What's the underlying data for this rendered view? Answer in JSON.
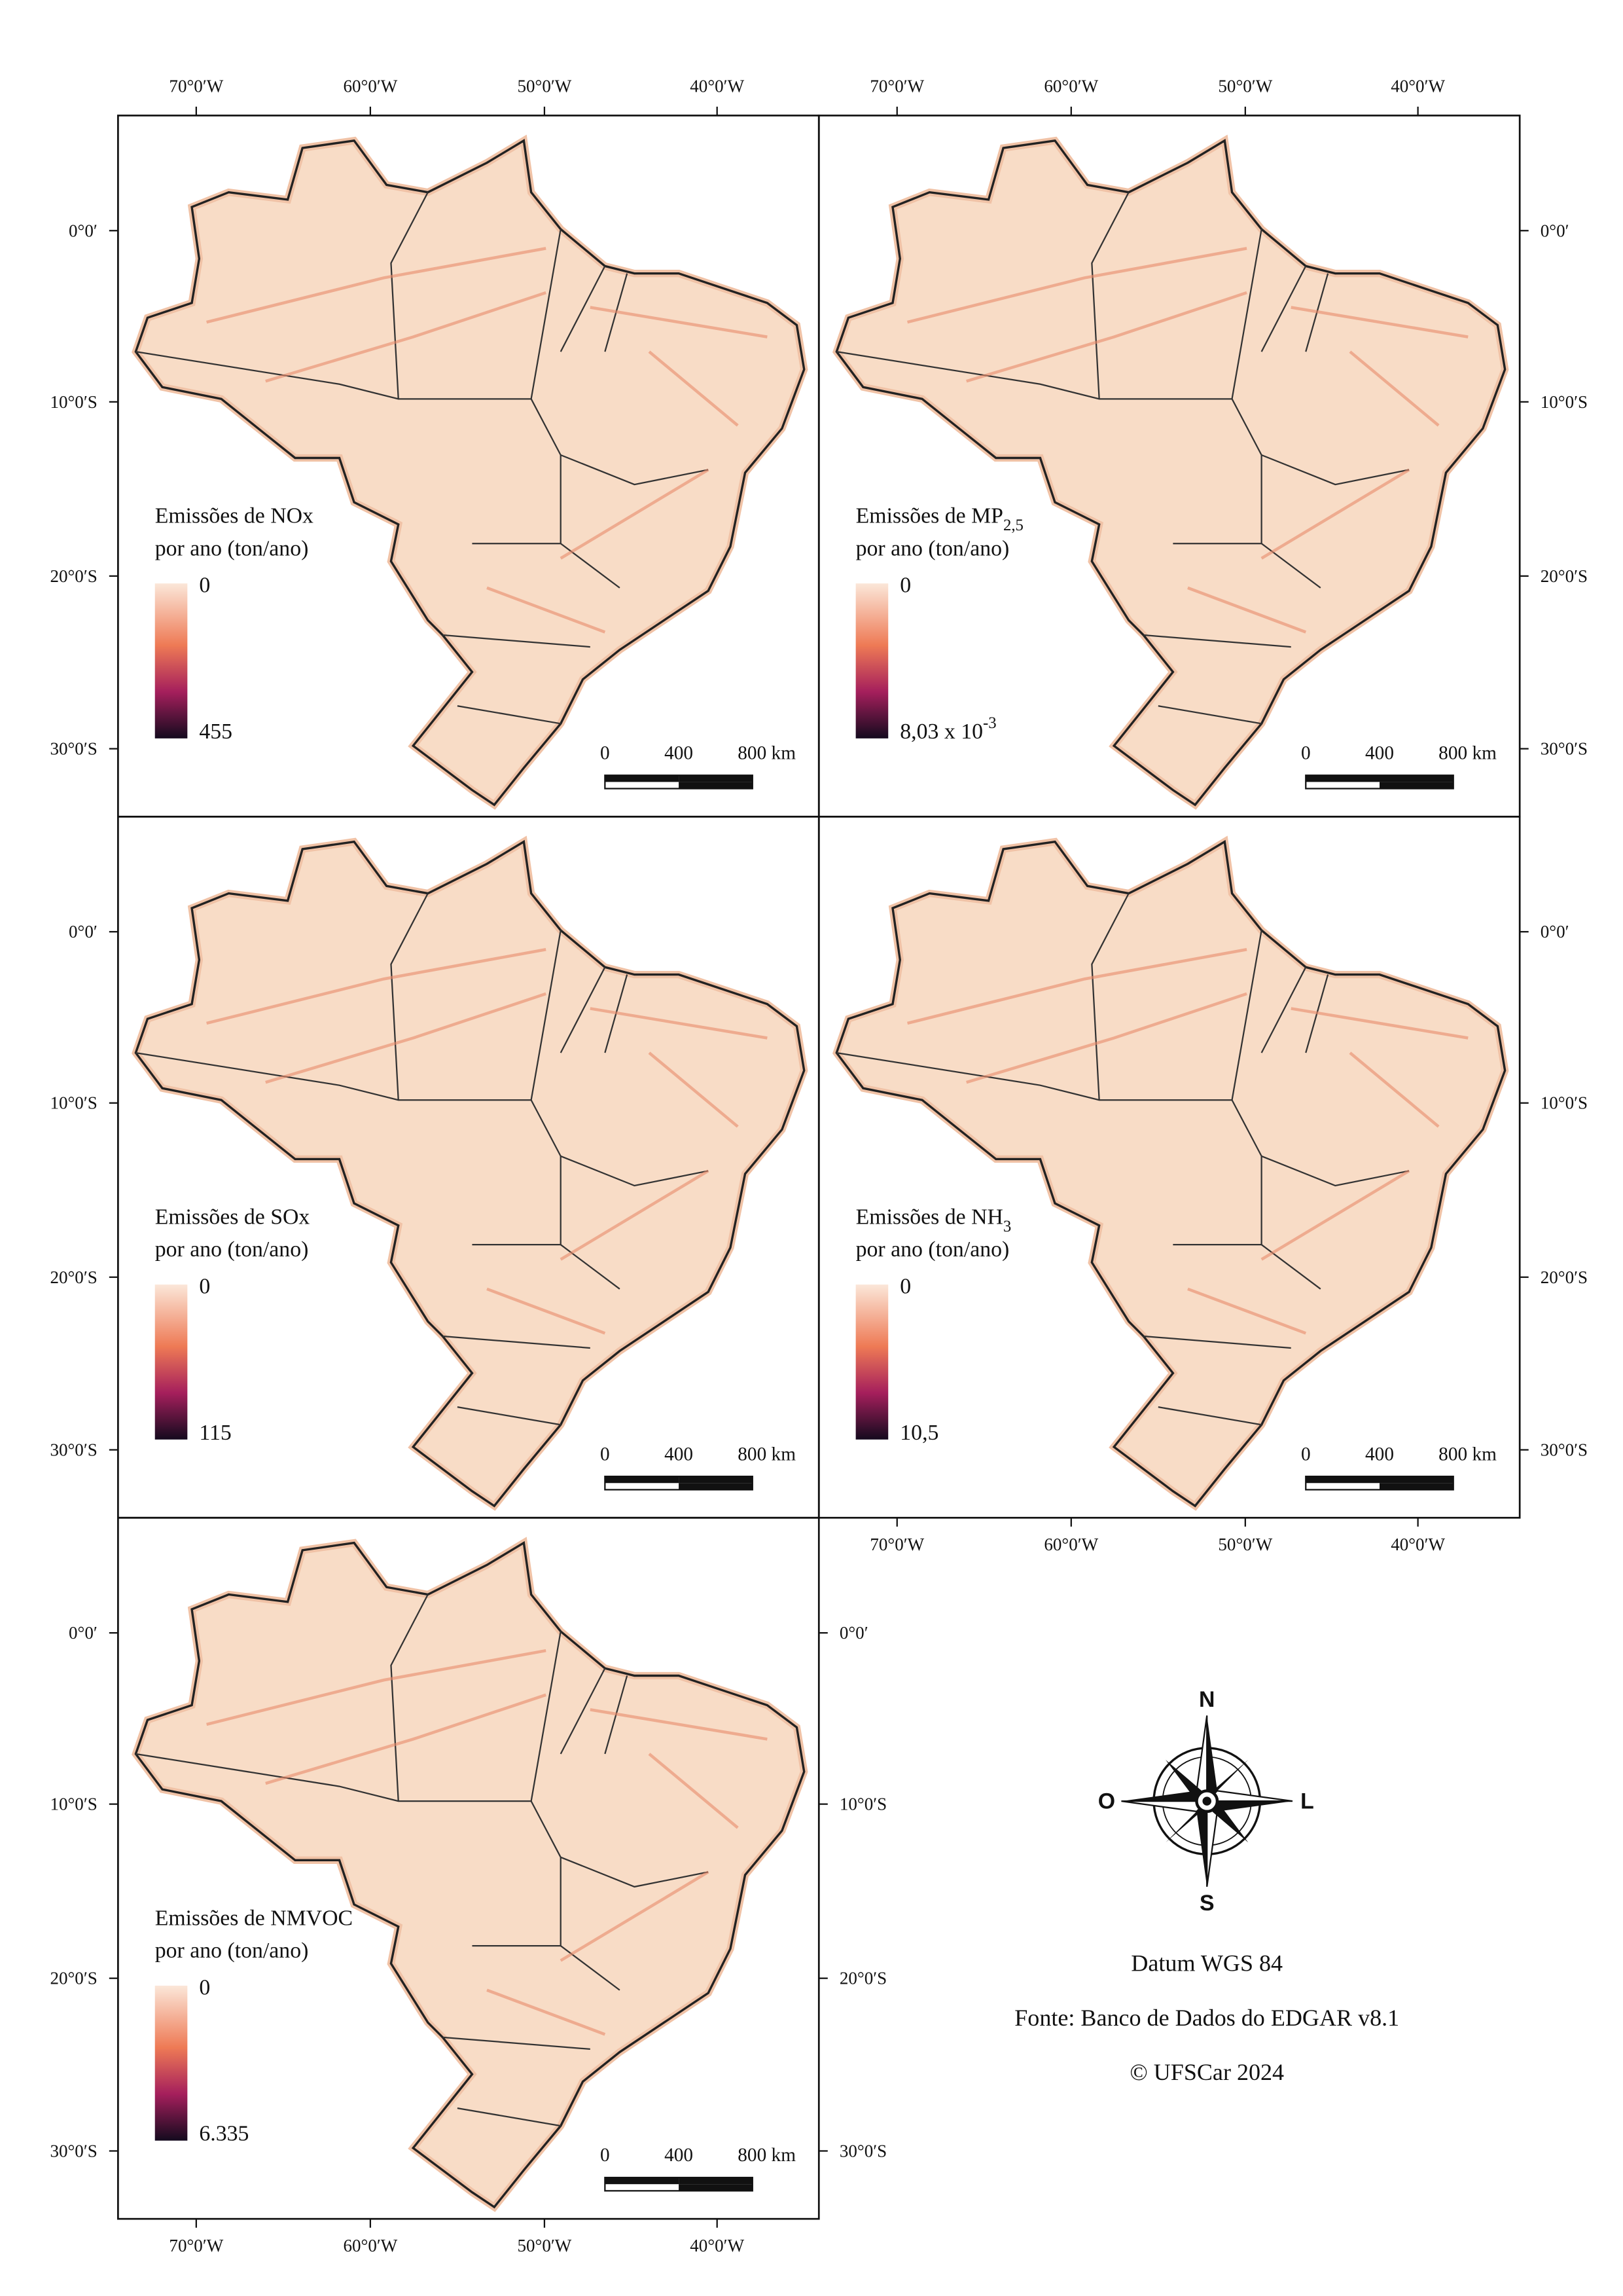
{
  "lon_labels": [
    "70°0′W",
    "60°0′W",
    "50°0′W",
    "40°0′W"
  ],
  "lat_labels": [
    "0°0′",
    "10°0′S",
    "20°0′S",
    "30°0′S"
  ],
  "scale_labels": [
    "0",
    "400",
    "800 km"
  ],
  "panels": [
    {
      "title": "Emissões de NOx",
      "subtitle": "por ano (ton/ano)",
      "min": "0",
      "max": "455",
      "label_sides": [
        "top",
        "left"
      ]
    },
    {
      "title": "Emissões de MP",
      "title_sub": "2,5",
      "subtitle": "por ano (ton/ano)",
      "min": "0",
      "max": "8,03 x 10",
      "max_sup": "-3",
      "label_sides": [
        "top",
        "right"
      ]
    },
    {
      "title": "Emissões de SOx",
      "subtitle": "por ano (ton/ano)",
      "min": "0",
      "max": "115",
      "label_sides": [
        "left"
      ]
    },
    {
      "title": "Emissões de NH",
      "title_sub": "3",
      "subtitle": "por ano (ton/ano)",
      "min": "0",
      "max": "10,5",
      "label_sides": [
        "right",
        "bottom"
      ]
    },
    {
      "title": "Emissões de NMVOC",
      "subtitle": "por ano (ton/ano)",
      "min": "0",
      "max": "6.335",
      "label_sides": [
        "left",
        "right",
        "bottom"
      ]
    }
  ],
  "compass": {
    "north": "N",
    "south": "S",
    "west": "O",
    "east": "L"
  },
  "footer": [
    "Datum WGS 84",
    "Fonte: Banco de Dados do EDGAR v8.1",
    "© UFSCar 2024"
  ]
}
